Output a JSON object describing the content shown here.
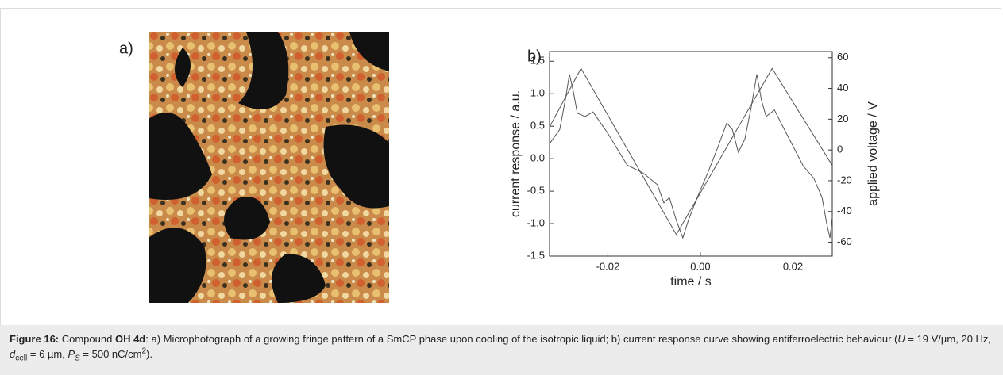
{
  "figure": {
    "image_label": "a)",
    "caption": [
      {
        "text": "Figure 16:",
        "style": "bold"
      },
      {
        "text": " Compound "
      },
      {
        "text": "OH 4d",
        "style": "bold"
      },
      {
        "text": ": a) Microphotograph of a growing fringe pattern of a SmCP phase upon cooling of the isotropic liquid; b) current response curve showing antiferroelectric behaviour ("
      },
      {
        "text": "U",
        "style": "italic"
      },
      {
        "text": " = 19 V/µm, 20 Hz, "
      },
      {
        "text": "d",
        "style": "italic"
      },
      {
        "text": "cell",
        "style": "sub"
      },
      {
        "text": " = 6 µm, "
      },
      {
        "text": "P",
        "style": "italic"
      },
      {
        "text": "S",
        "style": "italic-sub"
      },
      {
        "text": " = 500 nC/cm"
      },
      {
        "text": "2",
        "style": "sup"
      },
      {
        "text": ")."
      }
    ]
  },
  "chart_data": {
    "type": "line",
    "panel_label": "b)",
    "x_label": "time / s",
    "y_label": "current response / a.u.",
    "y2_label": "applied voltage / V",
    "xlim": [
      -0.0326,
      0.0285
    ],
    "xticks": [
      -0.02,
      {
        "value": 0,
        "label": "0.00"
      },
      0.02
    ],
    "ylim": [
      -1.5,
      1.65
    ],
    "yticks": [
      -1.5,
      {
        "value": -1,
        "label": "-1.0"
      },
      -0.5,
      {
        "value": 0,
        "label": "0.0"
      },
      0.5,
      {
        "value": 1,
        "label": "1.0"
      },
      1.5
    ],
    "y2lim": [
      -69,
      64
    ],
    "y2ticks": [
      -60,
      -40,
      -20,
      0,
      20,
      40,
      60
    ],
    "series": [
      {
        "color": "#555555",
        "x": [
          -0.0326,
          -0.0304,
          -0.0292,
          -0.0283,
          -0.0275,
          -0.0266,
          -0.0249,
          -0.0232,
          -0.0201,
          -0.0158,
          -0.0124,
          -0.0093,
          -0.0079,
          -0.0067,
          -0.0052,
          -0.0038,
          -0.0026,
          -0.0007,
          0.0017,
          0.0039,
          0.0057,
          0.0069,
          0.0082,
          0.0096,
          0.011,
          0.0122,
          0.0132,
          0.0142,
          0.016,
          0.0185,
          0.0223,
          0.0245,
          0.0263,
          0.0273,
          0.028,
          0.0285
        ],
        "values": [
          0.23,
          0.45,
          0.9,
          1.3,
          1.05,
          0.7,
          0.65,
          0.72,
          0.4,
          -0.1,
          -0.22,
          -0.4,
          -0.68,
          -0.6,
          -0.95,
          -1.22,
          -0.95,
          -0.6,
          -0.2,
          0.2,
          0.55,
          0.45,
          0.1,
          0.3,
          0.8,
          1.3,
          0.9,
          0.65,
          0.75,
          0.4,
          -0.12,
          -0.3,
          -0.6,
          -1.0,
          -1.22,
          -0.9
        ]
      },
      {
        "color": "#555555",
        "axis": "y2",
        "x": [
          -0.0326,
          -0.0258,
          -0.0052,
          0.0155,
          0.0285
        ],
        "values": [
          15,
          53,
          -55,
          53,
          -10
        ]
      }
    ]
  }
}
